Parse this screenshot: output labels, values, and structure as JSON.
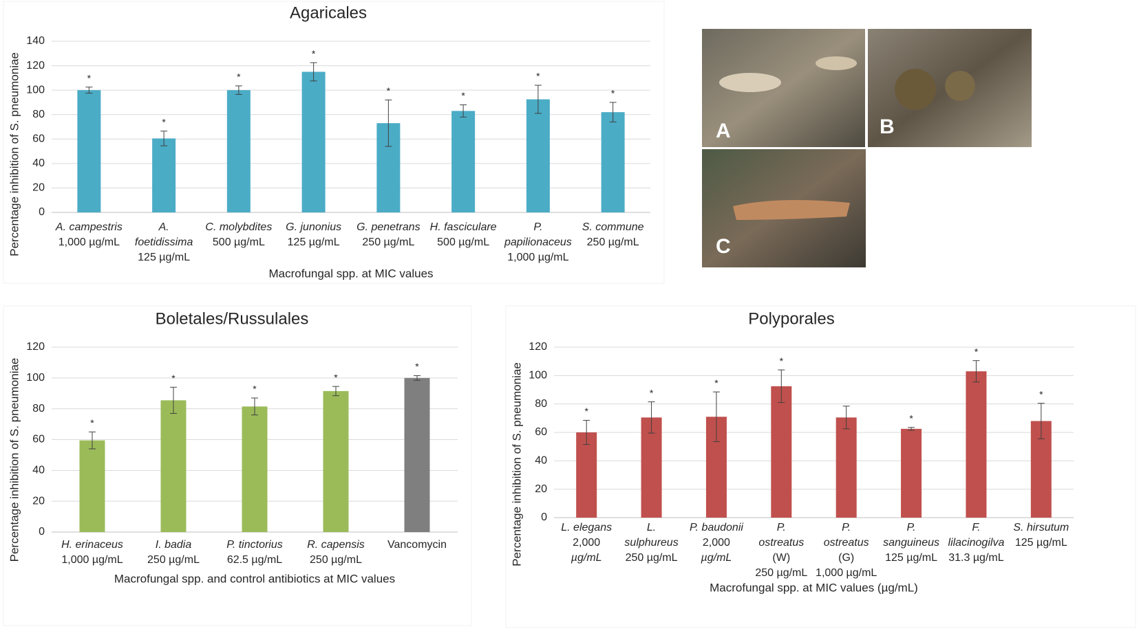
{
  "chart_data": [
    {
      "type": "bar",
      "title": "Agaricales",
      "ylabel": "Percentage inhibition of S. pneumoniae",
      "xlabel": "Macrofungal spp. at MIC values",
      "categories": [
        [
          "A. campestris",
          "1,000 µg/mL"
        ],
        [
          "A.",
          "foetidissima",
          "125 µg/mL"
        ],
        [
          "C. molybdites",
          "500 µg/mL"
        ],
        [
          "G. junonius",
          "125 µg/mL"
        ],
        [
          "G. penetrans",
          "250 µg/mL"
        ],
        [
          "H. fasciculare",
          "500 µg/mL"
        ],
        [
          "P.",
          "papilionaceus",
          "1,000 µg/mL"
        ],
        [
          "S. commune",
          "250 µg/mL"
        ]
      ],
      "values": [
        100,
        60.5,
        100,
        115,
        73,
        83,
        92.5,
        82
      ],
      "errors": [
        2.5,
        6,
        3.5,
        7.5,
        19,
        5,
        11.5,
        8
      ],
      "markers": [
        "*",
        "*",
        "*",
        "*",
        "*",
        "*",
        "*",
        "*"
      ],
      "colors": [
        "#4bacc6",
        "#4bacc6",
        "#4bacc6",
        "#4bacc6",
        "#4bacc6",
        "#4bacc6",
        "#4bacc6",
        "#4bacc6"
      ],
      "ylim": [
        0,
        140
      ],
      "yticks": [
        0,
        20,
        40,
        60,
        80,
        100,
        120,
        140
      ],
      "grid": true
    },
    {
      "type": "bar",
      "title": "Boletales/Russulales",
      "ylabel": "Percentage inhibition of S. pneumoniae",
      "xlabel": "Macrofungal spp. and control antibiotics at MIC values",
      "categories": [
        [
          "H. erinaceus",
          "1,000 µg/mL"
        ],
        [
          "I. badia",
          "250 µg/mL"
        ],
        [
          "P. tinctorius",
          "62.5 µg/mL"
        ],
        [
          "R. capensis",
          "250 µg/mL"
        ],
        [
          "Vancomycin"
        ]
      ],
      "values": [
        59.5,
        85.5,
        81.5,
        91.5,
        100
      ],
      "errors": [
        5.5,
        8.5,
        5.5,
        3,
        1.5
      ],
      "markers": [
        "*",
        "*",
        "*",
        "*",
        "*"
      ],
      "colors": [
        "#9bbb59",
        "#9bbb59",
        "#9bbb59",
        "#9bbb59",
        "#7f7f7f"
      ],
      "ylim": [
        0,
        120
      ],
      "yticks": [
        0,
        20,
        40,
        60,
        80,
        100,
        120
      ],
      "grid": true
    },
    {
      "type": "bar",
      "title": "Polyporales",
      "ylabel": "Percentage inhibition of S. pneumoniae",
      "xlabel": "Macrofungal spp. at MIC values (µg/mL)",
      "categories": [
        [
          "L. elegans",
          "2,000",
          "µg/mL"
        ],
        [
          "L.",
          "sulphureus",
          "250 µg/mL"
        ],
        [
          "P. baudonii",
          "2,000",
          "µg/mL"
        ],
        [
          "P.",
          "ostreatus",
          "(W)",
          "250 µg/mL"
        ],
        [
          "P.",
          "ostreatus",
          "(G)",
          "1,000 µg/mL"
        ],
        [
          "P.",
          "sanguineus",
          "125 µg/mL"
        ],
        [
          "F.",
          "lilacinogilva",
          "31.3 µg/mL"
        ],
        [
          "S. hirsutum",
          "125 µg/mL"
        ]
      ],
      "values": [
        60,
        70.5,
        71,
        92.5,
        70.5,
        62.5,
        103,
        68
      ],
      "errors": [
        8.5,
        11,
        17.5,
        11.5,
        8,
        1,
        7.5,
        12.5
      ],
      "markers": [
        "*",
        "*",
        "*",
        "*",
        null,
        "*",
        "*",
        "*"
      ],
      "colors": [
        "#c0504d",
        "#c0504d",
        "#c0504d",
        "#c0504d",
        "#c0504d",
        "#c0504d",
        "#c0504d",
        "#c0504d"
      ],
      "ylim": [
        0,
        120
      ],
      "yticks": [
        0,
        20,
        40,
        60,
        80,
        100,
        120
      ],
      "grid": true
    }
  ],
  "photo_labels": [
    "A",
    "B",
    "C"
  ]
}
